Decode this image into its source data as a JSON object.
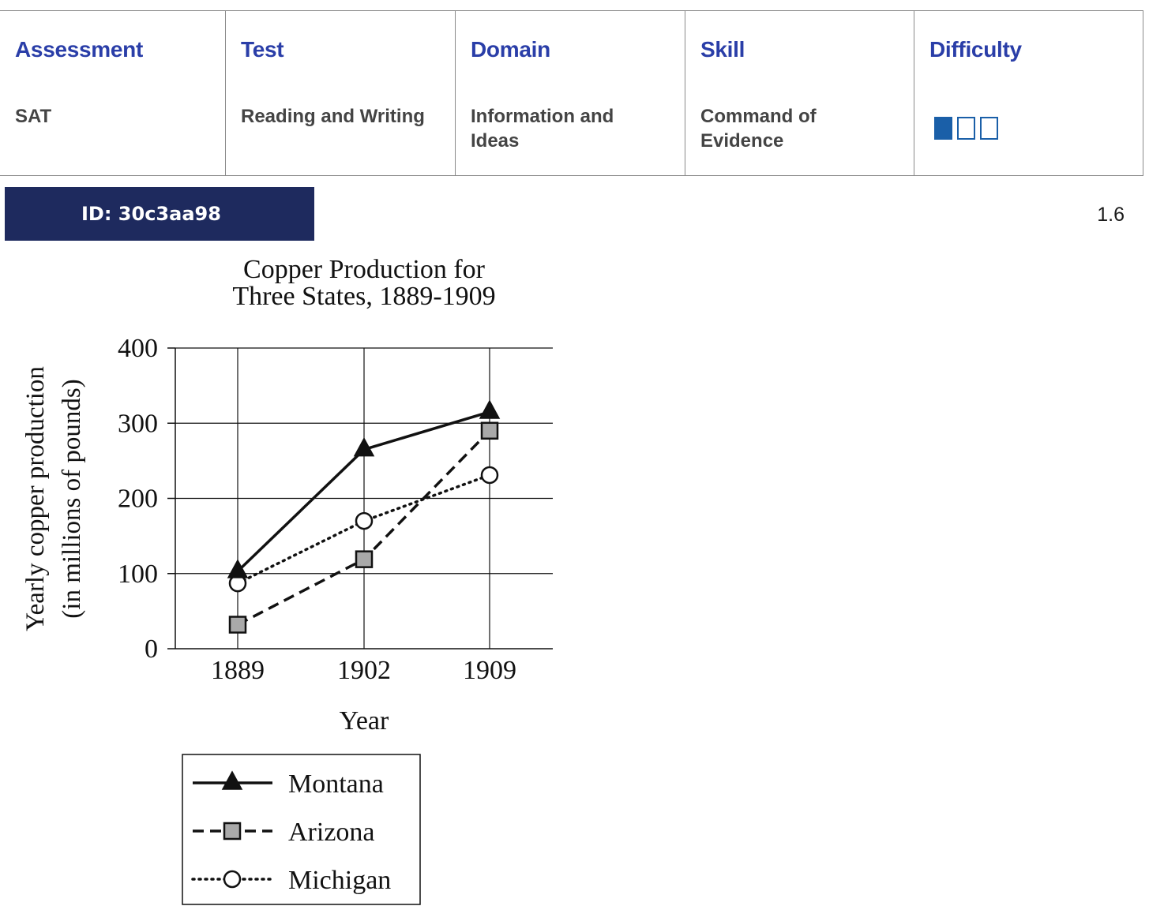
{
  "meta": {
    "columns": [
      {
        "header": "Assessment",
        "value": "SAT"
      },
      {
        "header": "Test",
        "value": "Reading and Writing"
      },
      {
        "header": "Domain",
        "value": "Information and Ideas"
      },
      {
        "header": "Skill",
        "value": "Command of Evidence"
      },
      {
        "header": "Difficulty",
        "value": ""
      }
    ],
    "difficulty_level": 1,
    "difficulty_max": 3
  },
  "question_id": "ID: 30c3aa98",
  "version": "1.6",
  "colors": {
    "header_text": "#2a3ea8",
    "banner_bg": "#1e2a5e",
    "difficulty": "#1a5fa8"
  },
  "chart_data": {
    "type": "line",
    "title": "Copper Production for Three States, 1889-1909",
    "title_lines": [
      "Copper Production for",
      "Three States, 1889-1909"
    ],
    "xlabel": "Year",
    "ylabel": "Yearly copper production (in millions of pounds)",
    "ylabel_lines": [
      "Yearly copper production",
      "(in millions of pounds)"
    ],
    "categories": [
      "1889",
      "1902",
      "1909"
    ],
    "ylim": [
      0,
      400
    ],
    "yticks": [
      0,
      100,
      200,
      300,
      400
    ],
    "grid": true,
    "legend_position": "bottom",
    "series": [
      {
        "name": "Montana",
        "values": [
          103,
          265,
          315
        ],
        "marker": "triangle",
        "line_style": "solid"
      },
      {
        "name": "Arizona",
        "values": [
          32,
          119,
          290
        ],
        "marker": "square",
        "line_style": "dashed"
      },
      {
        "name": "Michigan",
        "values": [
          87,
          170,
          231
        ],
        "marker": "circle",
        "line_style": "dotted"
      }
    ]
  }
}
